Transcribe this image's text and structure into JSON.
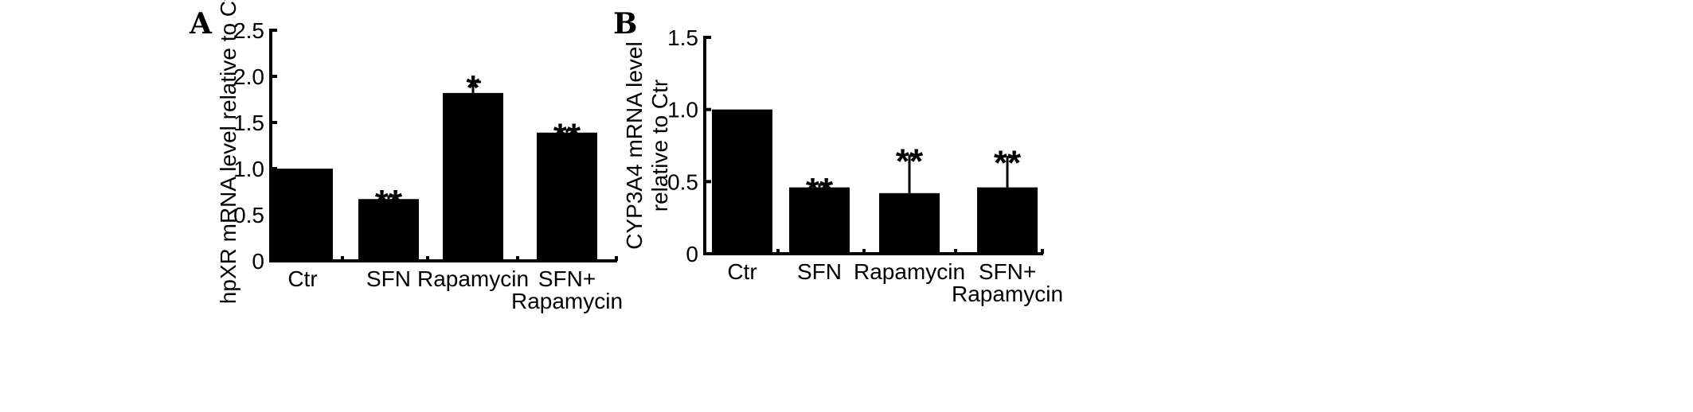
{
  "chart_data": [
    {
      "type": "bar",
      "panel_label": "A",
      "ylabel": "hpXR mRNA level relative to Ctr",
      "ylim": [
        0,
        2.5
      ],
      "yticks": [
        "0",
        "0.5",
        "1.0",
        "1.5",
        "2.0",
        "2.5"
      ],
      "categories": [
        [
          "Ctr"
        ],
        [
          "SFN"
        ],
        [
          "Rapamycin"
        ],
        [
          "SFN+",
          "Rapamycin"
        ]
      ],
      "values": [
        1.0,
        0.67,
        1.82,
        1.39
      ],
      "errors": [
        0,
        0.03,
        0.12,
        0.03
      ],
      "annotations": [
        "",
        "**",
        "*",
        "**"
      ],
      "bar_color": "#000000",
      "grid": false
    },
    {
      "type": "bar",
      "panel_label": "B",
      "ylabel": [
        "CYP3A4 mRNA level",
        "relative to Ctr"
      ],
      "ylim": [
        0,
        1.5
      ],
      "yticks": [
        "0",
        "0.5",
        "1.0",
        "1.5"
      ],
      "categories": [
        [
          "Ctr"
        ],
        [
          "SFN"
        ],
        [
          "Rapamycin"
        ],
        [
          "SFN+",
          "Rapamycin"
        ]
      ],
      "values": [
        1.0,
        0.46,
        0.42,
        0.46
      ],
      "errors": [
        0,
        0.02,
        0.26,
        0.21
      ],
      "annotations": [
        "",
        "**",
        "**",
        "**"
      ],
      "bar_color": "#000000",
      "grid": false
    }
  ]
}
